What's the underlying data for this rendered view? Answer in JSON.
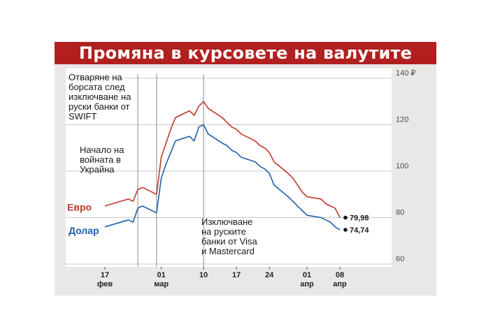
{
  "title": "Промяна в курсовете на валутите",
  "colors": {
    "banner": "#b1201f",
    "euro": "#c0392b",
    "dollar": "#1f5fa8",
    "background": "#eae8e6"
  },
  "annotations": {
    "swift": [
      "Отваряне на",
      "борсата след",
      "изключване на",
      "руски банки от",
      "SWIFT"
    ],
    "war": [
      "Начало на",
      "войната в",
      "Украйна"
    ],
    "cards": [
      "Изключване",
      "на руските",
      "банки от Visa",
      "и Mastercard"
    ]
  },
  "chart_data": {
    "type": "line",
    "title": "Промяна в курсовете на валутите",
    "x_dates": [
      "2022-02-17",
      "2022-02-22",
      "2022-02-23",
      "2022-02-24",
      "2022-02-25",
      "2022-02-28",
      "2022-03-01",
      "2022-03-02",
      "2022-03-03",
      "2022-03-04",
      "2022-03-07",
      "2022-03-08",
      "2022-03-09",
      "2022-03-10",
      "2022-03-11",
      "2022-03-14",
      "2022-03-15",
      "2022-03-16",
      "2022-03-17",
      "2022-03-18",
      "2022-03-21",
      "2022-03-22",
      "2022-03-23",
      "2022-03-24",
      "2022-03-25",
      "2022-03-28",
      "2022-03-29",
      "2022-03-30",
      "2022-03-31",
      "2022-04-01",
      "2022-04-04",
      "2022-04-05",
      "2022-04-06",
      "2022-04-07",
      "2022-04-08"
    ],
    "series": [
      {
        "name": "Евро",
        "values": [
          85,
          88,
          87,
          92,
          93,
          90,
          106,
          112,
          118,
          123,
          126,
          124,
          128,
          130,
          127,
          123,
          121,
          119,
          118,
          116,
          113,
          111,
          110,
          108,
          104,
          99,
          97,
          94,
          91,
          89,
          88,
          86,
          85,
          84,
          79.98
        ]
      },
      {
        "name": "Долар",
        "values": [
          76,
          79,
          78,
          84,
          85,
          82,
          97,
          103,
          108,
          113,
          115,
          113,
          119,
          120,
          116,
          112,
          111,
          109,
          108,
          106,
          104,
          102,
          101,
          99,
          94,
          89,
          87,
          85,
          83,
          81,
          80,
          79,
          78,
          76,
          74.74
        ]
      }
    ],
    "end_labels": [
      "79,98",
      "74,74"
    ],
    "y_ticks": [
      "140 ₽",
      "120",
      "100",
      "80",
      "60"
    ],
    "ylim": [
      60,
      140
    ],
    "x_ticks": [
      {
        "date": "2022-02-17",
        "day": "17",
        "month": "фев"
      },
      {
        "date": "2022-03-01",
        "day": "01",
        "month": "мар"
      },
      {
        "date": "2022-03-10",
        "day": "10",
        "month": ""
      },
      {
        "date": "2022-03-17",
        "day": "17",
        "month": ""
      },
      {
        "date": "2022-03-24",
        "day": "24",
        "month": ""
      },
      {
        "date": "2022-04-01",
        "day": "01",
        "month": "апр"
      },
      {
        "date": "2022-04-08",
        "day": "08",
        "month": "апр"
      }
    ],
    "vertical_markers": [
      "2022-02-24",
      "2022-02-28",
      "2022-03-10"
    ],
    "grid": true,
    "legend": "left-inline"
  }
}
